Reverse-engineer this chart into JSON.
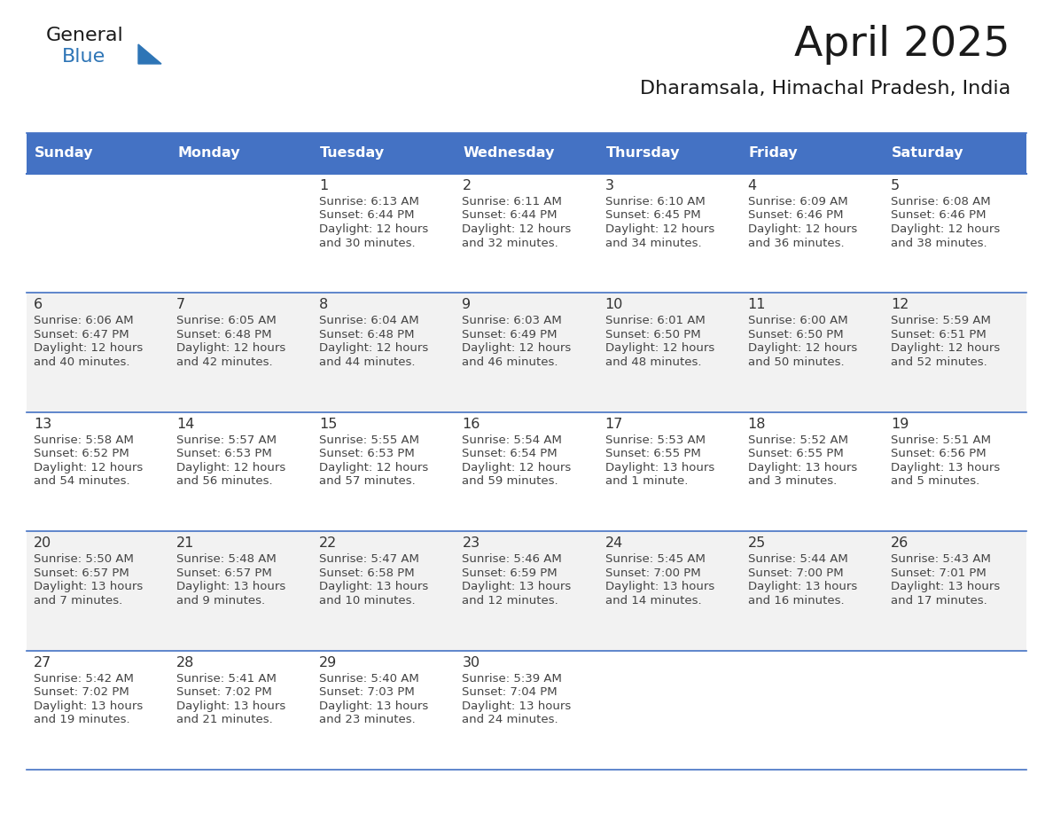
{
  "title": "April 2025",
  "subtitle": "Dharamsala, Himachal Pradesh, India",
  "days_of_week": [
    "Sunday",
    "Monday",
    "Tuesday",
    "Wednesday",
    "Thursday",
    "Friday",
    "Saturday"
  ],
  "header_bg": "#4472C4",
  "header_text": "#FFFFFF",
  "row_bg": [
    "#FFFFFF",
    "#F2F2F2"
  ],
  "border_color": "#4472C4",
  "day_number_color": "#333333",
  "text_color": "#444444",
  "title_color": "#1a1a1a",
  "subtitle_color": "#1a1a1a",
  "logo_general_color": "#1a1a1a",
  "logo_blue_color": "#2E75B6",
  "calendar_data": [
    [
      {
        "day": null,
        "info": ""
      },
      {
        "day": null,
        "info": ""
      },
      {
        "day": 1,
        "info": "Sunrise: 6:13 AM\nSunset: 6:44 PM\nDaylight: 12 hours\nand 30 minutes."
      },
      {
        "day": 2,
        "info": "Sunrise: 6:11 AM\nSunset: 6:44 PM\nDaylight: 12 hours\nand 32 minutes."
      },
      {
        "day": 3,
        "info": "Sunrise: 6:10 AM\nSunset: 6:45 PM\nDaylight: 12 hours\nand 34 minutes."
      },
      {
        "day": 4,
        "info": "Sunrise: 6:09 AM\nSunset: 6:46 PM\nDaylight: 12 hours\nand 36 minutes."
      },
      {
        "day": 5,
        "info": "Sunrise: 6:08 AM\nSunset: 6:46 PM\nDaylight: 12 hours\nand 38 minutes."
      }
    ],
    [
      {
        "day": 6,
        "info": "Sunrise: 6:06 AM\nSunset: 6:47 PM\nDaylight: 12 hours\nand 40 minutes."
      },
      {
        "day": 7,
        "info": "Sunrise: 6:05 AM\nSunset: 6:48 PM\nDaylight: 12 hours\nand 42 minutes."
      },
      {
        "day": 8,
        "info": "Sunrise: 6:04 AM\nSunset: 6:48 PM\nDaylight: 12 hours\nand 44 minutes."
      },
      {
        "day": 9,
        "info": "Sunrise: 6:03 AM\nSunset: 6:49 PM\nDaylight: 12 hours\nand 46 minutes."
      },
      {
        "day": 10,
        "info": "Sunrise: 6:01 AM\nSunset: 6:50 PM\nDaylight: 12 hours\nand 48 minutes."
      },
      {
        "day": 11,
        "info": "Sunrise: 6:00 AM\nSunset: 6:50 PM\nDaylight: 12 hours\nand 50 minutes."
      },
      {
        "day": 12,
        "info": "Sunrise: 5:59 AM\nSunset: 6:51 PM\nDaylight: 12 hours\nand 52 minutes."
      }
    ],
    [
      {
        "day": 13,
        "info": "Sunrise: 5:58 AM\nSunset: 6:52 PM\nDaylight: 12 hours\nand 54 minutes."
      },
      {
        "day": 14,
        "info": "Sunrise: 5:57 AM\nSunset: 6:53 PM\nDaylight: 12 hours\nand 56 minutes."
      },
      {
        "day": 15,
        "info": "Sunrise: 5:55 AM\nSunset: 6:53 PM\nDaylight: 12 hours\nand 57 minutes."
      },
      {
        "day": 16,
        "info": "Sunrise: 5:54 AM\nSunset: 6:54 PM\nDaylight: 12 hours\nand 59 minutes."
      },
      {
        "day": 17,
        "info": "Sunrise: 5:53 AM\nSunset: 6:55 PM\nDaylight: 13 hours\nand 1 minute."
      },
      {
        "day": 18,
        "info": "Sunrise: 5:52 AM\nSunset: 6:55 PM\nDaylight: 13 hours\nand 3 minutes."
      },
      {
        "day": 19,
        "info": "Sunrise: 5:51 AM\nSunset: 6:56 PM\nDaylight: 13 hours\nand 5 minutes."
      }
    ],
    [
      {
        "day": 20,
        "info": "Sunrise: 5:50 AM\nSunset: 6:57 PM\nDaylight: 13 hours\nand 7 minutes."
      },
      {
        "day": 21,
        "info": "Sunrise: 5:48 AM\nSunset: 6:57 PM\nDaylight: 13 hours\nand 9 minutes."
      },
      {
        "day": 22,
        "info": "Sunrise: 5:47 AM\nSunset: 6:58 PM\nDaylight: 13 hours\nand 10 minutes."
      },
      {
        "day": 23,
        "info": "Sunrise: 5:46 AM\nSunset: 6:59 PM\nDaylight: 13 hours\nand 12 minutes."
      },
      {
        "day": 24,
        "info": "Sunrise: 5:45 AM\nSunset: 7:00 PM\nDaylight: 13 hours\nand 14 minutes."
      },
      {
        "day": 25,
        "info": "Sunrise: 5:44 AM\nSunset: 7:00 PM\nDaylight: 13 hours\nand 16 minutes."
      },
      {
        "day": 26,
        "info": "Sunrise: 5:43 AM\nSunset: 7:01 PM\nDaylight: 13 hours\nand 17 minutes."
      }
    ],
    [
      {
        "day": 27,
        "info": "Sunrise: 5:42 AM\nSunset: 7:02 PM\nDaylight: 13 hours\nand 19 minutes."
      },
      {
        "day": 28,
        "info": "Sunrise: 5:41 AM\nSunset: 7:02 PM\nDaylight: 13 hours\nand 21 minutes."
      },
      {
        "day": 29,
        "info": "Sunrise: 5:40 AM\nSunset: 7:03 PM\nDaylight: 13 hours\nand 23 minutes."
      },
      {
        "day": 30,
        "info": "Sunrise: 5:39 AM\nSunset: 7:04 PM\nDaylight: 13 hours\nand 24 minutes."
      },
      {
        "day": null,
        "info": ""
      },
      {
        "day": null,
        "info": ""
      },
      {
        "day": null,
        "info": ""
      }
    ]
  ]
}
